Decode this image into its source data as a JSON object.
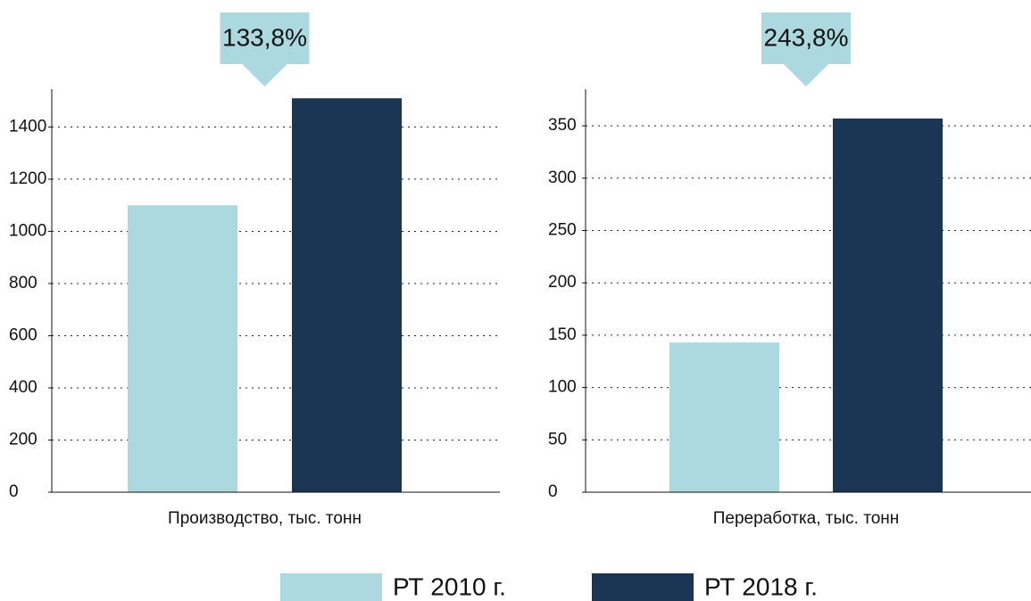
{
  "chart_data": [
    {
      "type": "bar",
      "x_label": "Производство, тыс. тонн",
      "annotation": "133,8%",
      "values": [
        1100,
        1510
      ],
      "ylim": [
        0,
        1545
      ],
      "yticks": [
        0,
        200,
        400,
        600,
        800,
        1000,
        1200,
        1400
      ],
      "grid": true
    },
    {
      "type": "bar",
      "x_label": "Переработка, тыс. тонн",
      "annotation": "243,8%",
      "values": [
        143,
        357
      ],
      "ylim": [
        0,
        385
      ],
      "yticks": [
        0,
        50,
        100,
        150,
        200,
        250,
        300,
        350
      ],
      "grid": true
    }
  ],
  "legend": {
    "items": [
      {
        "name": "РТ 2010 г.",
        "color": "#acd8e0"
      },
      {
        "name": "РТ 2018 г.",
        "color": "#1b3554"
      }
    ]
  }
}
